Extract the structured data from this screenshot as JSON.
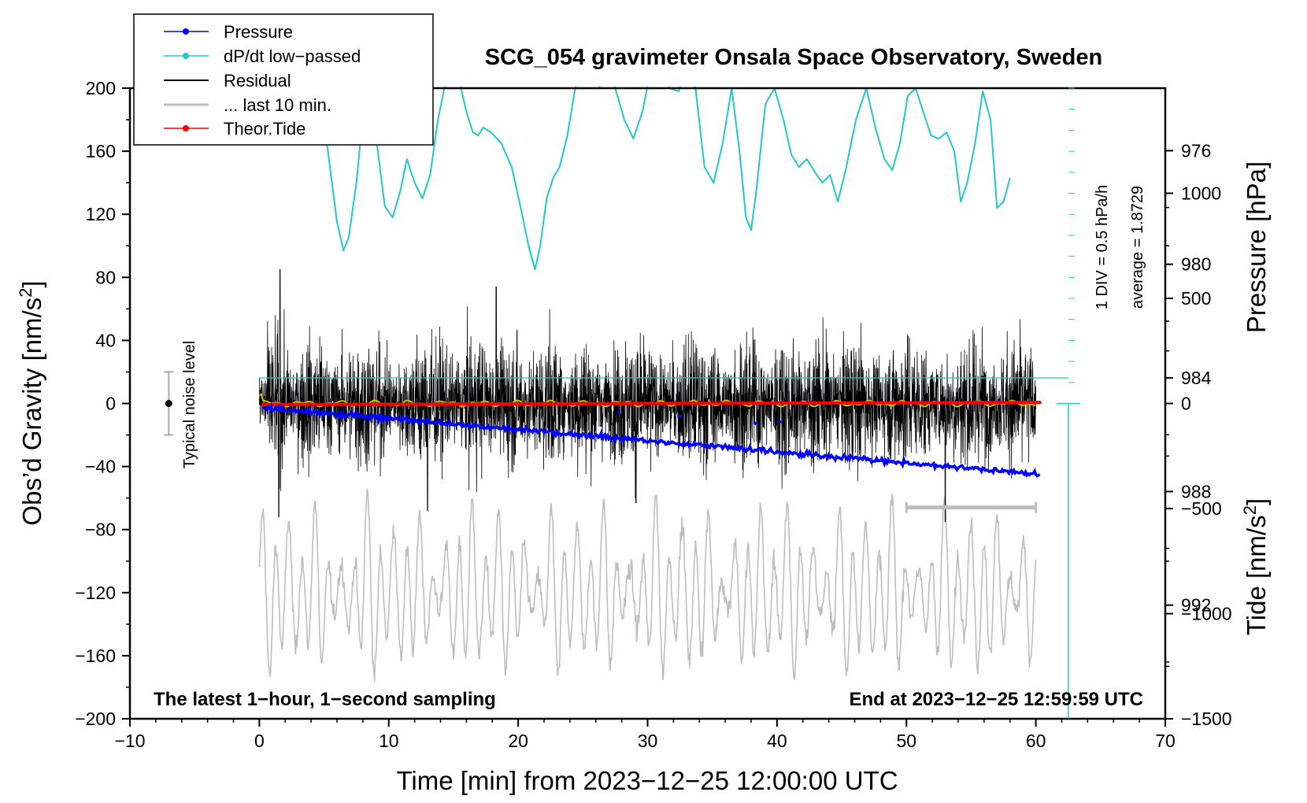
{
  "chart_data": {
    "type": "line",
    "title": "SCG_054 gravimeter Onsala Space Observatory, Sweden",
    "xlabel": "Time [min] from 2023−12−25 12:00:00 UTC",
    "ylabel_left": "Obs’d Gravity [nm/s",
    "ylabel_left_sup": "2",
    "ylabel_left_end": "]",
    "ylabel_right_pressure": "Pressure [hPa]",
    "ylabel_right_tide": "Tide [nm/s",
    "ylabel_right_tide_sup": "2",
    "ylabel_right_tide_end": "]",
    "xlim": [
      -10,
      70
    ],
    "ylim": [
      -200,
      200
    ],
    "x_ticks": [
      "−10",
      "0",
      "10",
      "20",
      "30",
      "40",
      "50",
      "60",
      "70"
    ],
    "y_ticks": [
      "200",
      "160",
      "120",
      "80",
      "40",
      "0",
      "−40",
      "−80",
      "−120",
      "−160",
      "−200"
    ],
    "pressure_ticks": [
      "992",
      "988",
      "984",
      "980",
      "976"
    ],
    "tide_ticks": [
      "1000",
      "500",
      "0",
      "−500",
      "−1000",
      "−1500"
    ],
    "pressure_range_hpa": [
      973.8,
      996
    ],
    "tide_range": [
      -1500,
      1500
    ],
    "legend": [
      {
        "label": "Pressure",
        "color": "#0000ff"
      },
      {
        "label": "dP/dt low−passed",
        "color": "#22c7c7"
      },
      {
        "label": "Residual",
        "color": "#000000"
      },
      {
        "label": "... last 10 min.",
        "color": "#bdbdbd"
      },
      {
        "label": "Theor.Tide",
        "color": "#ff0000"
      }
    ],
    "pressure_series": {
      "start_hpa": 985.05,
      "end_hpa": 987.4
    },
    "dpdt_x": [
      0,
      1,
      2,
      3,
      4.5,
      5.3,
      6,
      6.5,
      6.9,
      7.5,
      8.2,
      9,
      9.7,
      10.3,
      10.9,
      11.4,
      12,
      12.6,
      13.2,
      13.8,
      14.3,
      14.7,
      15.3,
      16,
      16.5,
      16.9,
      17.3,
      17.9,
      18.7,
      19.5,
      20.3,
      20.8,
      21.3,
      21.7,
      22.2,
      22.7,
      23.2,
      23.8,
      24.4,
      25,
      25.7,
      26.3,
      26.8,
      27.5,
      28.2,
      28.9,
      29.6,
      30.2,
      31,
      31.7,
      32.4,
      33,
      33.7,
      34.4,
      35.1,
      35.8,
      36.5,
      37.1,
      37.6,
      38,
      38.4,
      39.1,
      39.8,
      40.5,
      41.1,
      41.7,
      42.3,
      42.9,
      43.5,
      44.1,
      44.7,
      45.3,
      46.1,
      46.9,
      47.6,
      48.3,
      48.9,
      49.5,
      50.1,
      50.7,
      51.3,
      51.9,
      52.5,
      53.1,
      53.7,
      54.2,
      54.7,
      55.3,
      55.9,
      56.5,
      57,
      57.5,
      58
    ],
    "dpdt_y": [
      200,
      200,
      200,
      200,
      200,
      160,
      115,
      97,
      105,
      140,
      200,
      170,
      125,
      118,
      135,
      155,
      140,
      130,
      145,
      180,
      200,
      210,
      210,
      185,
      172,
      170,
      175,
      172,
      165,
      150,
      120,
      100,
      85,
      100,
      130,
      143,
      150,
      170,
      200,
      210,
      210,
      200,
      210,
      200,
      180,
      168,
      185,
      210,
      210,
      200,
      198,
      210,
      200,
      150,
      140,
      165,
      200,
      160,
      118,
      110,
      135,
      190,
      200,
      180,
      158,
      150,
      155,
      147,
      140,
      145,
      128,
      148,
      180,
      200,
      175,
      155,
      148,
      165,
      195,
      200,
      185,
      170,
      168,
      172,
      160,
      128,
      140,
      165,
      198,
      180,
      124,
      128,
      143
    ],
    "residual_envelope": 40,
    "residual_extremes": [
      [
        1.6,
        85
      ],
      [
        1.5,
        -72
      ],
      [
        29.1,
        -63
      ],
      [
        53.0,
        -75
      ],
      [
        18.3,
        74
      ],
      [
        13.0,
        -68
      ]
    ],
    "residual_mean_series": "yellow low-passed ≈ 0 nm/s²",
    "last10_baseline": -120,
    "last10_amplitude": 45,
    "last10_indicator_x": [
      50,
      60
    ],
    "last10_indicator_y": -66,
    "theor_tide": {
      "start": -5,
      "end": 5
    },
    "dpdt_baseline_pressure_hpa": 984,
    "noise_level": {
      "center": 0,
      "half_range": 20,
      "x": -7
    },
    "dpdt_scale_text": "1 DIV = 0.5 hPa/h",
    "average_text": "average = 1.8729",
    "noise_label": "Typical noise level",
    "footer_left": "The latest 1−hour, 1−second sampling",
    "footer_right": "End at 2023−12−25 12:59:59 UTC"
  }
}
